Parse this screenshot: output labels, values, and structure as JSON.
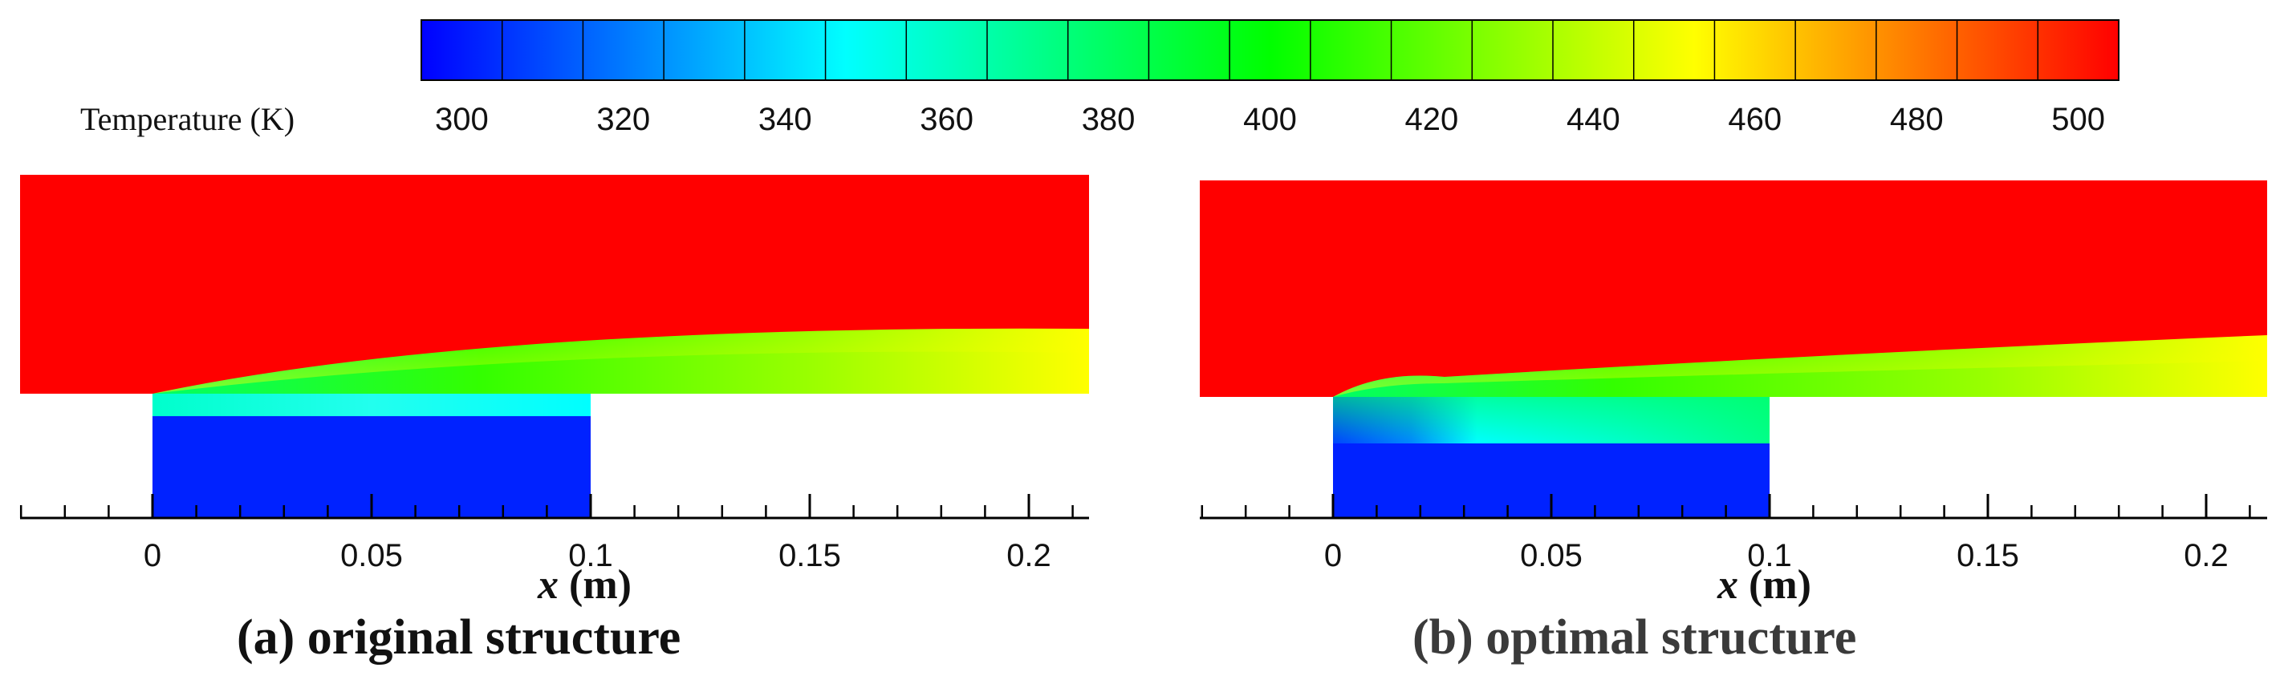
{
  "colorbar": {
    "label": "Temperature (K)",
    "ticks": [
      "300",
      "320",
      "340",
      "360",
      "380",
      "400",
      "420",
      "440",
      "460",
      "480",
      "500"
    ],
    "tick_values": [
      300,
      320,
      340,
      360,
      380,
      400,
      420,
      440,
      460,
      480,
      500
    ],
    "range": [
      295,
      505
    ],
    "levels": 21,
    "colors": [
      "#0000ff",
      "#00ffff",
      "#00ff00",
      "#ffff00",
      "#ff0000"
    ]
  },
  "chart_data": [
    {
      "type": "heatmap",
      "title": "(a) original structure",
      "xlabel": "x (m)",
      "xlim": [
        -0.03,
        0.213
      ],
      "xticks": [
        "0",
        "0.05",
        "0.1",
        "0.15",
        "0.2"
      ],
      "xtick_values": [
        0,
        0.05,
        0.1,
        0.15,
        0.2
      ],
      "colorbar_label": "Temperature (K)",
      "freestream_temperature": 500,
      "block_region": [
        0,
        0.1
      ],
      "block_temperature": 300,
      "coolant_film_temperature": 360,
      "downstream_wall_temperature": 440
    },
    {
      "type": "heatmap",
      "title": "(b) optimal structure",
      "xlabel": "x (m)",
      "xlim": [
        -0.03,
        0.213
      ],
      "xticks": [
        "0",
        "0.05",
        "0.1",
        "0.15",
        "0.2"
      ],
      "xtick_values": [
        0,
        0.05,
        0.1,
        0.15,
        0.2
      ],
      "colorbar_label": "Temperature (K)",
      "freestream_temperature": 500,
      "block_region": [
        0,
        0.1
      ],
      "block_temperature": 300,
      "coolant_film_temperature": 370,
      "downstream_wall_temperature": 440
    }
  ]
}
